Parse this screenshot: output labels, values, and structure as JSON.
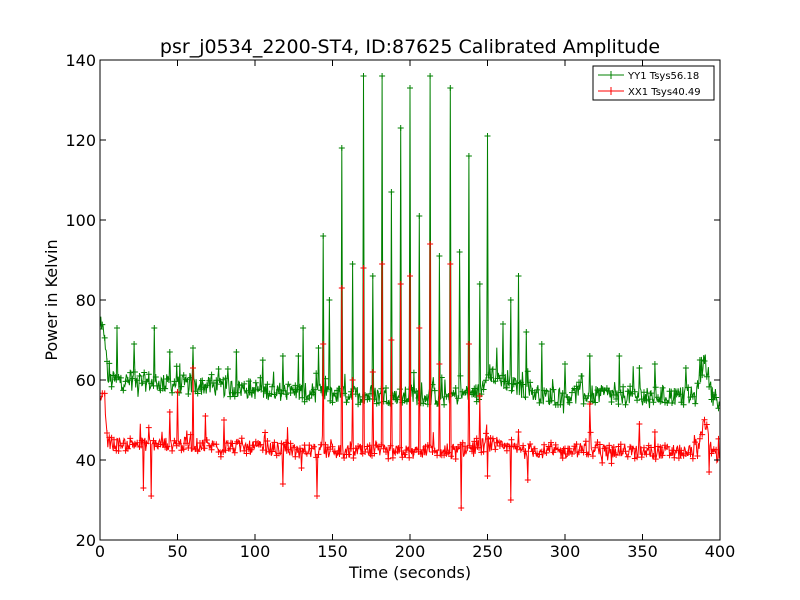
{
  "chart_data": {
    "type": "line",
    "title": "psr_j0534_2200-ST4, ID:87625 Calibrated Amplitude",
    "xlabel": "Time (seconds)",
    "ylabel": "Power in Kelvin",
    "xlim": [
      0,
      400
    ],
    "ylim": [
      20,
      140
    ],
    "xticks": [
      0,
      50,
      100,
      150,
      200,
      250,
      300,
      350,
      400
    ],
    "yticks": [
      20,
      40,
      60,
      80,
      100,
      120,
      140
    ],
    "grid": false,
    "legend_placement": "top-right",
    "series": [
      {
        "name": "YY1 Tsys56.18",
        "color": "#008000",
        "baseline": [
          [
            0,
            72
          ],
          [
            3,
            72
          ],
          [
            5,
            60
          ],
          [
            50,
            59
          ],
          [
            100,
            57.5
          ],
          [
            150,
            56.5
          ],
          [
            200,
            56
          ],
          [
            230,
            56
          ],
          [
            245,
            57
          ],
          [
            250,
            62
          ],
          [
            260,
            60
          ],
          [
            270,
            58
          ],
          [
            290,
            56
          ],
          [
            300,
            56
          ],
          [
            310,
            56.5
          ],
          [
            350,
            56
          ],
          [
            385,
            56
          ],
          [
            390,
            66
          ],
          [
            395,
            56
          ],
          [
            400,
            55
          ]
        ],
        "noise": 2.4,
        "spikes": [
          [
            11,
            73
          ],
          [
            22,
            69
          ],
          [
            35,
            73
          ],
          [
            45,
            67
          ],
          [
            60,
            68
          ],
          [
            88,
            67
          ],
          [
            118,
            66
          ],
          [
            128,
            66
          ],
          [
            131,
            73
          ],
          [
            141,
            68
          ],
          [
            144,
            96
          ],
          [
            148,
            80
          ],
          [
            156,
            118
          ],
          [
            163,
            89
          ],
          [
            170,
            136
          ],
          [
            176,
            86
          ],
          [
            182,
            136
          ],
          [
            188,
            107
          ],
          [
            194,
            123
          ],
          [
            200,
            133
          ],
          [
            206,
            101
          ],
          [
            213,
            136
          ],
          [
            219,
            91
          ],
          [
            226,
            133
          ],
          [
            232,
            92
          ],
          [
            238,
            116
          ],
          [
            245,
            84
          ],
          [
            250,
            121
          ],
          [
            260,
            74
          ],
          [
            265,
            80
          ],
          [
            270,
            86
          ],
          [
            275,
            72
          ],
          [
            285,
            69
          ],
          [
            300,
            64
          ],
          [
            316,
            66
          ],
          [
            335,
            66
          ],
          [
            348,
            63
          ],
          [
            358,
            64
          ],
          [
            378,
            63
          ],
          [
            387,
            65
          ]
        ]
      },
      {
        "name": "XX1 Tsys40.49",
        "color": "#ff0000",
        "baseline": [
          [
            0,
            55
          ],
          [
            3,
            55
          ],
          [
            5,
            44
          ],
          [
            50,
            44
          ],
          [
            100,
            43
          ],
          [
            150,
            42
          ],
          [
            200,
            42
          ],
          [
            230,
            42
          ],
          [
            250,
            44
          ],
          [
            260,
            43
          ],
          [
            290,
            42
          ],
          [
            300,
            42
          ],
          [
            310,
            42.5
          ],
          [
            350,
            42
          ],
          [
            385,
            42
          ],
          [
            390,
            50
          ],
          [
            395,
            42
          ],
          [
            400,
            41
          ]
        ],
        "noise": 1.8,
        "spikes": [
          [
            28,
            33
          ],
          [
            33,
            31
          ],
          [
            45,
            52
          ],
          [
            50,
            57
          ],
          [
            60,
            63
          ],
          [
            68,
            51
          ],
          [
            80,
            50
          ],
          [
            118,
            34
          ],
          [
            130,
            38
          ],
          [
            140,
            31
          ],
          [
            144,
            69
          ],
          [
            156,
            83
          ],
          [
            163,
            60
          ],
          [
            170,
            88
          ],
          [
            176,
            62
          ],
          [
            182,
            89
          ],
          [
            188,
            70
          ],
          [
            194,
            84
          ],
          [
            200,
            86
          ],
          [
            206,
            73
          ],
          [
            213,
            94
          ],
          [
            219,
            64
          ],
          [
            226,
            89
          ],
          [
            233,
            28
          ],
          [
            238,
            69
          ],
          [
            245,
            56
          ],
          [
            250,
            36
          ],
          [
            265,
            30
          ],
          [
            270,
            47
          ],
          [
            276,
            35
          ],
          [
            316,
            54
          ],
          [
            348,
            49
          ],
          [
            358,
            47
          ],
          [
            393,
            37
          ]
        ]
      }
    ]
  }
}
